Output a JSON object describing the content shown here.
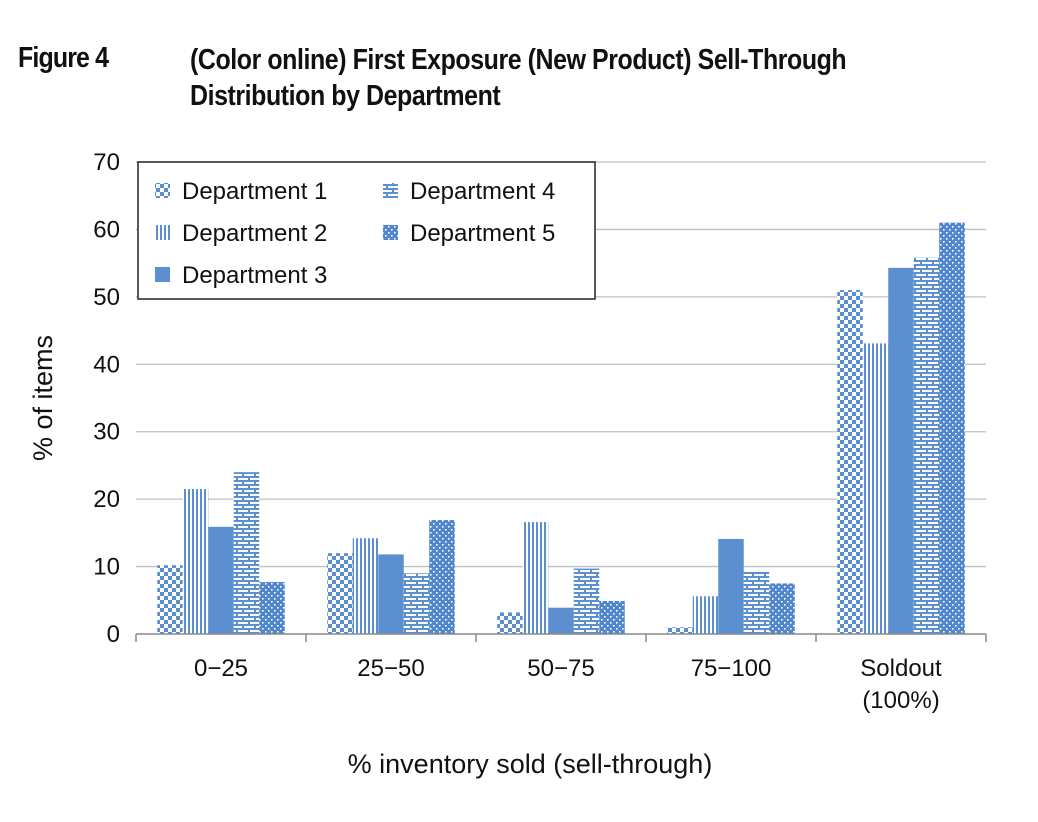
{
  "figure": {
    "label": "Figure 4",
    "title_line1": "(Color online) First Exposure (New Product) Sell-Through",
    "title_line2": "Distribution by Department"
  },
  "colors": {
    "bar": "#5b8fd0",
    "bar_dark": "#3d72b8",
    "grid": "#bfbfbf",
    "axis": "#888888",
    "text": "#111111"
  },
  "chart_data": {
    "type": "bar",
    "title": "(Color online) First Exposure (New Product) Sell-Through Distribution by Department",
    "xlabel": "% inventory sold (sell-through)",
    "ylabel": "% of items",
    "ylim": [
      0,
      70
    ],
    "yticks": [
      0,
      10,
      20,
      30,
      40,
      50,
      60,
      70
    ],
    "grid": true,
    "legend_position": "top-left",
    "categories": [
      [
        "0−25"
      ],
      [
        "25−50"
      ],
      [
        "50−75"
      ],
      [
        "75−100"
      ],
      [
        "Soldout",
        "(100%)"
      ]
    ],
    "series": [
      {
        "name": "Department 1",
        "pattern": "checker",
        "values": [
          10.2,
          12.0,
          3.2,
          1.0,
          51.0
        ]
      },
      {
        "name": "Department 2",
        "pattern": "vlines",
        "values": [
          21.5,
          14.2,
          16.6,
          5.6,
          43.1
        ]
      },
      {
        "name": "Department 3",
        "pattern": "solid",
        "values": [
          15.9,
          11.8,
          3.9,
          14.1,
          54.3
        ]
      },
      {
        "name": "Department 4",
        "pattern": "brick",
        "values": [
          24.0,
          9.0,
          9.7,
          9.2,
          55.8
        ]
      },
      {
        "name": "Department 5",
        "pattern": "dots",
        "values": [
          7.7,
          16.9,
          4.9,
          7.5,
          61.0
        ]
      }
    ]
  }
}
